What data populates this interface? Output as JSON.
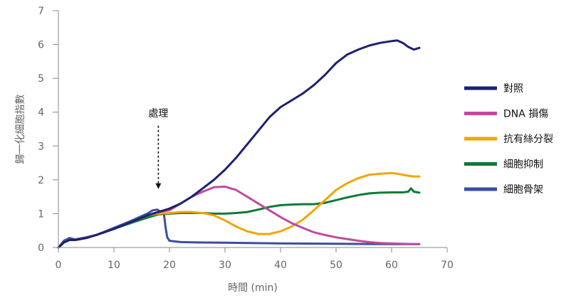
{
  "chart_data": {
    "type": "line",
    "title": "",
    "xlabel": "時間 (min)",
    "ylabel": "歸一化細胞指數",
    "xlim": [
      0,
      70
    ],
    "ylim": [
      0,
      7
    ],
    "x_ticks": [
      0,
      10,
      20,
      30,
      40,
      50,
      60,
      70
    ],
    "y_ticks": [
      0,
      1,
      2,
      3,
      4,
      5,
      6,
      7
    ],
    "grid": false,
    "legend_position": "right",
    "annotation": {
      "text": "處理",
      "x": 18,
      "arrow_from_y": 3.6,
      "arrow_to_y": 1.75
    },
    "series": [
      {
        "name": "對照",
        "color": "#1b2170",
        "x": [
          0,
          1,
          2,
          3,
          5,
          7,
          10,
          13,
          16,
          18,
          20,
          22,
          24,
          26,
          28,
          30,
          32,
          34,
          36,
          38,
          40,
          42,
          44,
          46,
          48,
          50,
          52,
          54,
          56,
          58,
          60,
          61,
          62,
          63,
          64,
          65
        ],
        "y": [
          0,
          0.15,
          0.22,
          0.22,
          0.28,
          0.38,
          0.55,
          0.75,
          0.95,
          1.05,
          1.15,
          1.3,
          1.5,
          1.75,
          2.0,
          2.3,
          2.65,
          3.05,
          3.45,
          3.85,
          4.15,
          4.35,
          4.55,
          4.8,
          5.1,
          5.45,
          5.7,
          5.85,
          5.97,
          6.05,
          6.1,
          6.12,
          6.05,
          5.93,
          5.85,
          5.9
        ]
      },
      {
        "name": "DNA 損傷",
        "color": "#c04b9e",
        "x": [
          0,
          1,
          2,
          3,
          5,
          7,
          10,
          13,
          16,
          18,
          20,
          22,
          24,
          26,
          28,
          30,
          32,
          34,
          36,
          38,
          40,
          42,
          44,
          46,
          48,
          50,
          52,
          54,
          56,
          58,
          60,
          62,
          64,
          65
        ],
        "y": [
          0,
          0.15,
          0.22,
          0.22,
          0.28,
          0.38,
          0.55,
          0.75,
          0.95,
          1.05,
          1.1,
          1.3,
          1.5,
          1.65,
          1.78,
          1.8,
          1.7,
          1.5,
          1.3,
          1.1,
          0.9,
          0.72,
          0.58,
          0.45,
          0.37,
          0.3,
          0.25,
          0.2,
          0.16,
          0.13,
          0.12,
          0.11,
          0.1,
          0.1
        ]
      },
      {
        "name": "抗有絲分裂",
        "color": "#f2a500",
        "x": [
          0,
          1,
          2,
          3,
          5,
          7,
          10,
          13,
          16,
          18,
          20,
          22,
          24,
          26,
          28,
          30,
          32,
          34,
          36,
          38,
          40,
          42,
          44,
          46,
          48,
          50,
          52,
          54,
          56,
          58,
          60,
          61,
          62,
          63,
          64,
          65
        ],
        "y": [
          0,
          0.15,
          0.22,
          0.22,
          0.28,
          0.38,
          0.55,
          0.75,
          0.95,
          1.0,
          1.02,
          1.05,
          1.05,
          1.02,
          0.95,
          0.8,
          0.62,
          0.48,
          0.4,
          0.4,
          0.48,
          0.62,
          0.82,
          1.1,
          1.4,
          1.7,
          1.9,
          2.05,
          2.15,
          2.18,
          2.2,
          2.18,
          2.15,
          2.12,
          2.1,
          2.1
        ]
      },
      {
        "name": "細胞抑制",
        "color": "#0e7a36",
        "x": [
          0,
          1,
          2,
          3,
          5,
          7,
          10,
          13,
          16,
          18,
          20,
          22,
          24,
          26,
          28,
          30,
          32,
          34,
          36,
          38,
          40,
          42,
          44,
          46,
          48,
          50,
          52,
          54,
          56,
          58,
          60,
          62,
          63,
          63.5,
          64,
          65
        ],
        "y": [
          0,
          0.15,
          0.22,
          0.22,
          0.28,
          0.38,
          0.55,
          0.72,
          0.88,
          0.98,
          1.0,
          1.02,
          1.02,
          1.02,
          1.0,
          1.0,
          1.02,
          1.05,
          1.12,
          1.2,
          1.25,
          1.27,
          1.28,
          1.28,
          1.32,
          1.4,
          1.48,
          1.55,
          1.6,
          1.62,
          1.63,
          1.63,
          1.65,
          1.75,
          1.65,
          1.62
        ]
      },
      {
        "name": "細胞骨架",
        "color": "#3a4f9f",
        "x": [
          0,
          1,
          2,
          3,
          5,
          7,
          10,
          13,
          16,
          17,
          17.8,
          18.5,
          19,
          19.3,
          19.6,
          20,
          22,
          25,
          30,
          40,
          50,
          60,
          65
        ],
        "y": [
          0,
          0.2,
          0.28,
          0.24,
          0.3,
          0.38,
          0.58,
          0.78,
          1.0,
          1.1,
          1.12,
          1.05,
          1.0,
          0.6,
          0.3,
          0.2,
          0.16,
          0.15,
          0.14,
          0.12,
          0.11,
          0.1,
          0.1
        ]
      }
    ]
  }
}
